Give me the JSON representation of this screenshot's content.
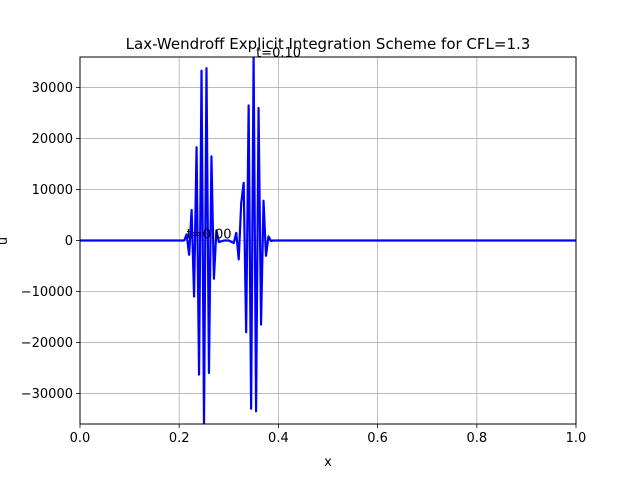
{
  "chart_data": {
    "type": "line",
    "title": "Lax-Wendroff Explicit Integration Scheme for  CFL=1.3",
    "xlabel": "x",
    "ylabel": "u",
    "xlim": [
      0.0,
      1.0
    ],
    "ylim": [
      -36000,
      36000
    ],
    "xticks": [
      0.0,
      0.2,
      0.4,
      0.6,
      0.8,
      1.0
    ],
    "xtick_labels": [
      "0.0",
      "0.2",
      "0.4",
      "0.6",
      "0.8",
      "1.0"
    ],
    "yticks": [
      -30000,
      -20000,
      -10000,
      0,
      10000,
      20000,
      30000
    ],
    "ytick_labels": [
      "−30000",
      "−20000",
      "−10000",
      "0",
      "10000",
      "20000",
      "30000"
    ],
    "grid": true,
    "color": "#0000ff",
    "annotations": [
      {
        "text": "t=0.00",
        "x": 0.215,
        "y": 400
      },
      {
        "text": "t=0.10",
        "x": 0.355,
        "y": 36000
      }
    ],
    "series": [
      {
        "x": [
          0.0,
          0.1,
          0.2,
          0.21,
          0.215,
          0.22,
          0.225,
          0.23,
          0.235,
          0.24,
          0.245,
          0.25,
          0.255,
          0.26,
          0.265,
          0.27,
          0.275,
          0.28,
          0.29,
          0.3,
          0.31,
          0.315,
          0.32,
          0.325,
          0.33,
          0.335,
          0.34,
          0.345,
          0.35,
          0.355,
          0.36,
          0.365,
          0.37,
          0.375,
          0.38,
          0.385,
          0.39,
          0.4,
          0.5,
          0.7,
          1.0
        ],
        "y": [
          0,
          0,
          0,
          0,
          1200,
          -2800,
          6000,
          -11000,
          18300,
          -26300,
          33300,
          -36000,
          33800,
          -26000,
          16500,
          -7500,
          2000,
          -300,
          0,
          0,
          -500,
          1500,
          -3700,
          7300,
          11300,
          -18000,
          26500,
          -33000,
          36000,
          -33500,
          26000,
          -16500,
          7800,
          -3000,
          800,
          -100,
          0,
          0,
          0,
          0,
          0
        ]
      }
    ]
  }
}
